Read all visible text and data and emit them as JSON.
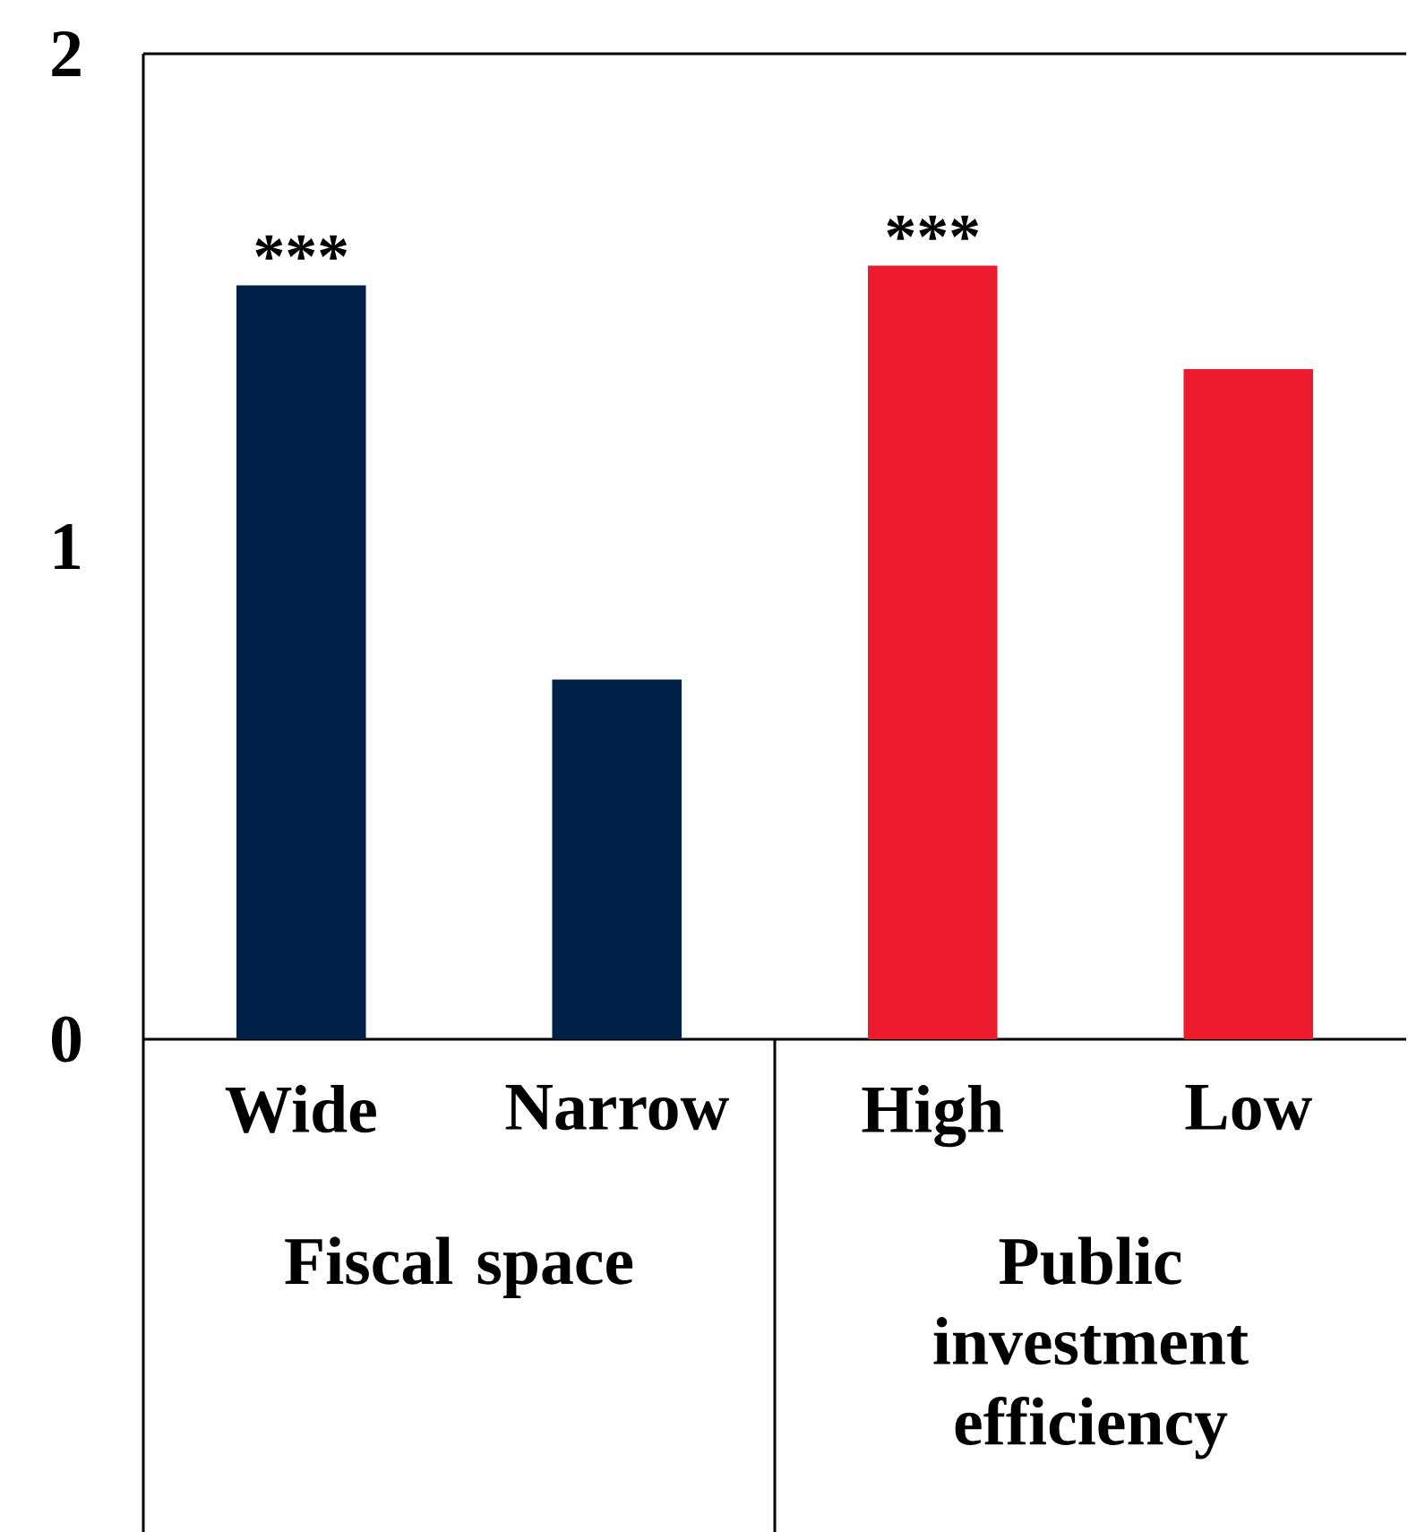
{
  "chart_data": {
    "type": "bar",
    "categories": [
      "Wide",
      "Narrow",
      "High",
      "Low"
    ],
    "values": [
      1.53,
      0.73,
      1.57,
      1.36
    ],
    "colors": [
      "#002147",
      "#002147",
      "#ec1c2e",
      "#ec1c2e"
    ],
    "ylim": [
      0,
      2
    ],
    "yticks": [
      0,
      1,
      2
    ],
    "annotations": [
      {
        "text": "***",
        "x": "Wide",
        "y": 1.53
      },
      {
        "text": "***",
        "x": "High",
        "y": 1.57
      },
      "Fiscal space",
      "Public investment efficiency"
    ]
  }
}
